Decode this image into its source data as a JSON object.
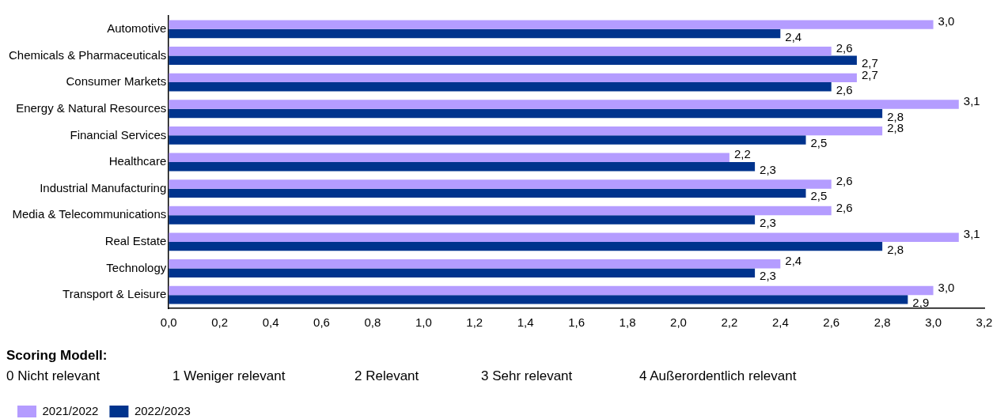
{
  "chart_data": {
    "type": "bar",
    "orientation": "horizontal",
    "categories": [
      "Automotive",
      "Chemicals & Pharmaceuticals",
      "Consumer Markets",
      "Energy & Natural Resources",
      "Financial Services",
      "Healthcare",
      "Industrial Manufacturing",
      "Media & Telecommunications",
      "Real Estate",
      "Technology",
      "Transport & Leisure"
    ],
    "series": [
      {
        "name": "2021/2022",
        "color": "#b49cff",
        "values": [
          3.0,
          2.6,
          2.7,
          3.1,
          2.8,
          2.2,
          2.6,
          2.6,
          3.1,
          2.4,
          3.0
        ],
        "value_labels": [
          "3,0",
          "2,6",
          "2,7",
          "3,1",
          "2,8",
          "2,2",
          "2,6",
          "2,6",
          "3,1",
          "2,4",
          "3,0"
        ]
      },
      {
        "name": "2022/2023",
        "color": "#00338d",
        "values": [
          2.4,
          2.7,
          2.6,
          2.8,
          2.5,
          2.3,
          2.5,
          2.3,
          2.8,
          2.3,
          2.9
        ],
        "value_labels": [
          "2,4",
          "2,7",
          "2,6",
          "2,8",
          "2,5",
          "2,3",
          "2,5",
          "2,3",
          "2,8",
          "2,3",
          "2,9"
        ]
      }
    ],
    "xlim": [
      0,
      3.2
    ],
    "xticks": [
      {
        "value": 0,
        "label": "0,0"
      },
      {
        "value": 0.2,
        "label": "0,2"
      },
      {
        "value": 0.4,
        "label": "0,4"
      },
      {
        "value": 0.6,
        "label": "0,6"
      },
      {
        "value": 0.8,
        "label": "0,8"
      },
      {
        "value": 1.0,
        "label": "1,0"
      },
      {
        "value": 1.2,
        "label": "1,2"
      },
      {
        "value": 1.4,
        "label": "1,4"
      },
      {
        "value": 1.6,
        "label": "1,6"
      },
      {
        "value": 1.8,
        "label": "1,8"
      },
      {
        "value": 2.0,
        "label": "2,0"
      },
      {
        "value": 2.2,
        "label": "2,2"
      },
      {
        "value": 2.4,
        "label": "2,4"
      },
      {
        "value": 2.6,
        "label": "2,6"
      },
      {
        "value": 2.8,
        "label": "2,8"
      },
      {
        "value": 3.0,
        "label": "3,0"
      },
      {
        "value": 3.2,
        "label": "3,2"
      }
    ],
    "grid": false,
    "legend": "bottom left",
    "annotations": [
      "Scoring Modell:",
      "0 Nicht relevant",
      "1 Weniger relevant",
      "2 Relevant",
      "3 Sehr relevant",
      "4 Außerordentlich relevant"
    ]
  }
}
